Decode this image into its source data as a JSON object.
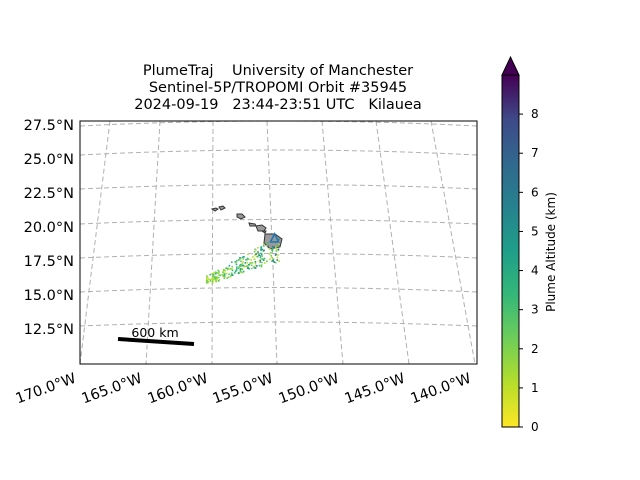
{
  "title": {
    "line1": "PlumeTraj    University of Manchester",
    "line2": "Sentinel-5P/TROPOMI Orbit #35945",
    "line3": "2024-09-19   23:44-23:51 UTC   Kilauea"
  },
  "map": {
    "lat_labels": [
      "27.5°N",
      "25.0°N",
      "22.5°N",
      "20.0°N",
      "17.5°N",
      "15.0°N",
      "12.5°N"
    ],
    "lon_labels": [
      "170.0°W",
      "165.0°W",
      "160.0°W",
      "155.0°W",
      "150.0°W",
      "145.0°W",
      "140.0°W"
    ],
    "scale_bar_label": "600 km",
    "gridlines": true
  },
  "colorbar": {
    "label": "Plume Altitude (km)",
    "ticks": [
      "0",
      "1",
      "2",
      "3",
      "4",
      "5",
      "6",
      "7",
      "8"
    ],
    "range": [
      0,
      9
    ],
    "extend": "max",
    "colormap": "viridis_r"
  },
  "chart_data": {
    "type": "scatter",
    "title": "PlumeTraj    University of Manchester / Sentinel-5P/TROPOMI Orbit #35945 / 2024-09-19   23:44-23:51 UTC   Kilauea",
    "lon_range": [
      -170,
      -140
    ],
    "lat_range": [
      10,
      27.5
    ],
    "volcano": "Kilauea",
    "plume_extent": {
      "lon": [
        -160.5,
        -155.0
      ],
      "lat": [
        16.5,
        19.5
      ]
    },
    "value_label": "Plume Altitude (km)",
    "value_range": [
      0,
      9
    ]
  }
}
